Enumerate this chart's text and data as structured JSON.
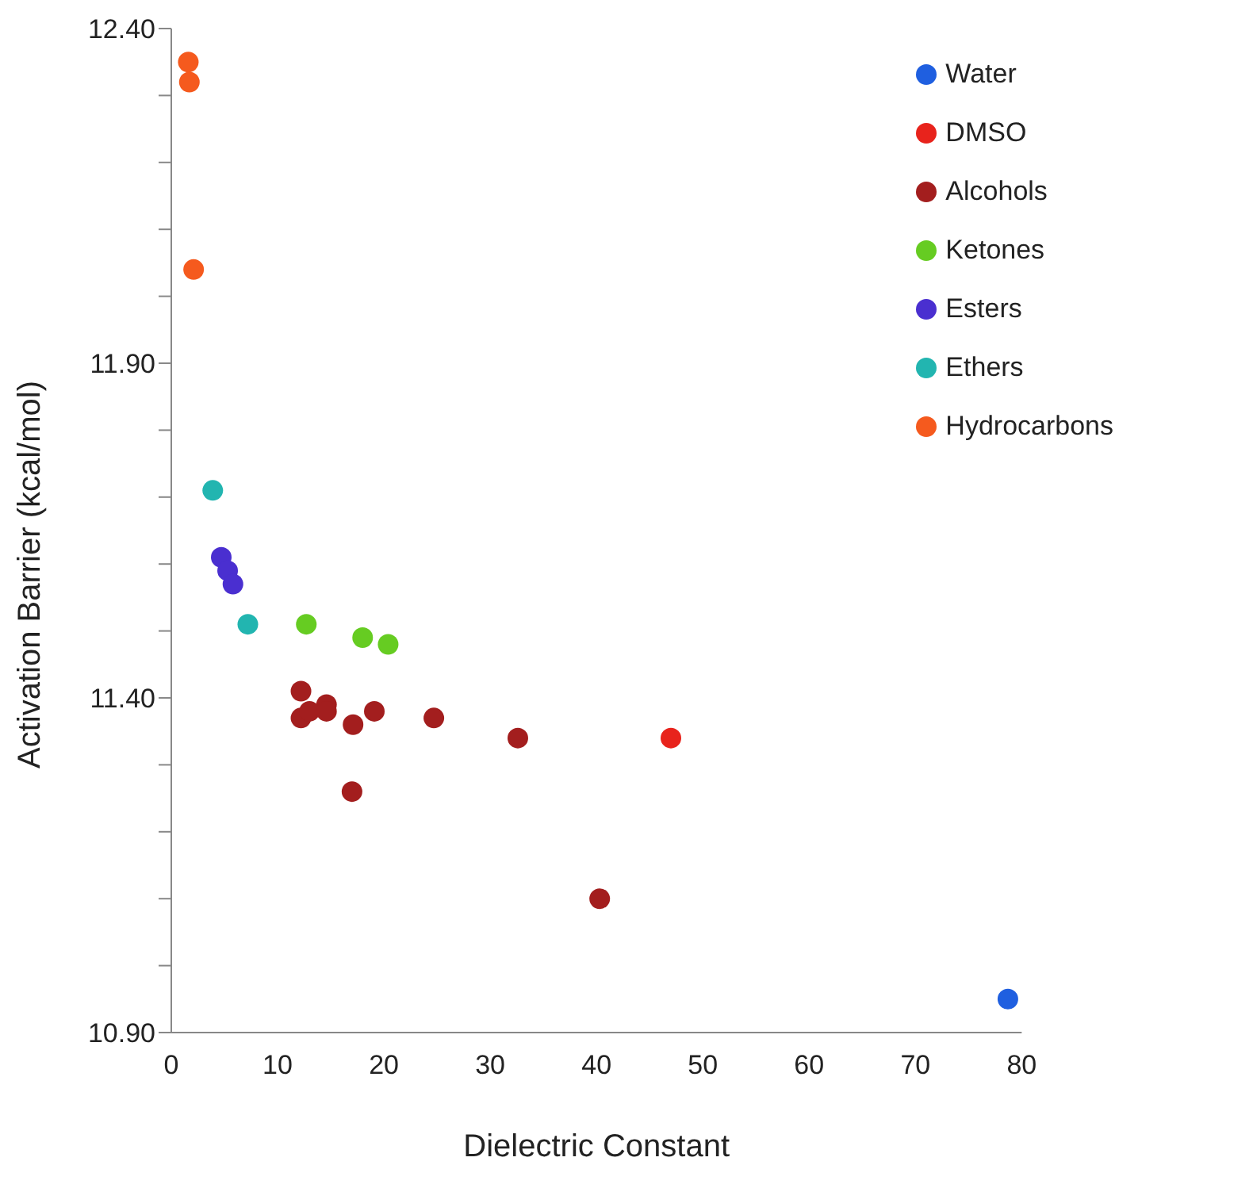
{
  "chart_data": {
    "type": "scatter",
    "xlabel": "Dielectric Constant",
    "ylabel": "Activation Barrier (kcal/mol)",
    "xlim": [
      0,
      80
    ],
    "xticks": [
      0,
      10,
      20,
      30,
      40,
      50,
      60,
      70,
      80
    ],
    "ylim": [
      10.9,
      12.4
    ],
    "yticks": [
      {
        "value": 10.9,
        "label": "10.90"
      },
      {
        "value": 11.0,
        "label": null
      },
      {
        "value": 11.1,
        "label": null
      },
      {
        "value": 11.2,
        "label": null
      },
      {
        "value": 11.3,
        "label": null
      },
      {
        "value": 11.4,
        "label": "11.40"
      },
      {
        "value": 11.5,
        "label": null
      },
      {
        "value": 11.6,
        "label": null
      },
      {
        "value": 11.7,
        "label": null
      },
      {
        "value": 11.8,
        "label": null
      },
      {
        "value": 11.9,
        "label": "11.90"
      },
      {
        "value": 12.0,
        "label": null
      },
      {
        "value": 12.1,
        "label": null
      },
      {
        "value": 12.2,
        "label": null
      },
      {
        "value": 12.3,
        "label": null
      },
      {
        "value": 12.4,
        "label": "12.40"
      }
    ],
    "grid": false,
    "legend": "top right",
    "marker": "circle",
    "series": [
      {
        "name": "Water",
        "color": "#1f5fe0",
        "x": [
          78.7
        ],
        "values": [
          10.95
        ]
      },
      {
        "name": "DMSO",
        "color": "#e8231c",
        "x": [
          47.0
        ],
        "values": [
          11.34
        ]
      },
      {
        "name": "Alcohols",
        "color": "#a31e1e",
        "x": [
          12.2,
          12.2,
          13.0,
          14.6,
          14.6,
          17.1,
          17.0,
          19.1,
          24.7,
          32.6,
          40.3
        ],
        "values": [
          11.41,
          11.37,
          11.38,
          11.39,
          11.38,
          11.36,
          11.26,
          11.38,
          11.37,
          11.34,
          11.1
        ]
      },
      {
        "name": "Ketones",
        "color": "#66cc22",
        "x": [
          12.7,
          18.0,
          20.4
        ],
        "values": [
          11.51,
          11.49,
          11.48
        ]
      },
      {
        "name": "Esters",
        "color": "#4a2fd0",
        "x": [
          4.7,
          5.3,
          5.8
        ],
        "values": [
          11.61,
          11.59,
          11.57
        ]
      },
      {
        "name": "Ethers",
        "color": "#22b5b0",
        "x": [
          3.9,
          7.2
        ],
        "values": [
          11.71,
          11.51
        ]
      },
      {
        "name": "Hydrocarbons",
        "color": "#f55a1e",
        "x": [
          1.6,
          1.7,
          2.1
        ],
        "values": [
          12.35,
          12.32,
          12.04
        ]
      }
    ]
  }
}
